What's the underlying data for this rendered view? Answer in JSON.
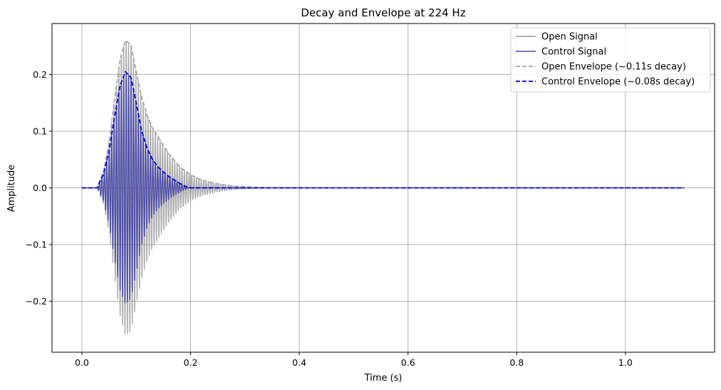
{
  "chart_data": {
    "type": "line",
    "title": "Decay and Envelope at 224 Hz",
    "xlabel": "Time (s)",
    "ylabel": "Amplitude",
    "xlim": [
      -0.055,
      1.164
    ],
    "ylim": [
      -0.29,
      0.29
    ],
    "x_ticks": [
      0.0,
      0.2,
      0.4,
      0.6,
      0.8,
      1.0
    ],
    "x_tick_labels": [
      "0.0",
      "0.2",
      "0.4",
      "0.6",
      "0.8",
      "1.0"
    ],
    "y_ticks": [
      -0.2,
      -0.1,
      0.0,
      0.1,
      0.2
    ],
    "y_tick_labels": [
      "−0.2",
      "−0.1",
      "0.0",
      "0.1",
      "0.2"
    ],
    "grid": true,
    "legend_position": "top-right",
    "x_end": 1.108,
    "series": [
      {
        "name": "Open Signal",
        "kind": "oscillation",
        "frequency_hz": 224,
        "color": "#999999",
        "style": "solid",
        "envelope_points": [
          [
            0.0,
            0.0
          ],
          [
            0.028,
            0.0
          ],
          [
            0.04,
            0.03
          ],
          [
            0.05,
            0.08
          ],
          [
            0.06,
            0.155
          ],
          [
            0.07,
            0.225
          ],
          [
            0.08,
            0.26
          ],
          [
            0.09,
            0.253
          ],
          [
            0.1,
            0.205
          ],
          [
            0.11,
            0.16
          ],
          [
            0.12,
            0.128
          ],
          [
            0.13,
            0.105
          ],
          [
            0.14,
            0.09
          ],
          [
            0.15,
            0.075
          ],
          [
            0.16,
            0.06
          ],
          [
            0.18,
            0.037
          ],
          [
            0.2,
            0.023
          ],
          [
            0.22,
            0.014
          ],
          [
            0.25,
            0.007
          ],
          [
            0.28,
            0.003
          ],
          [
            0.32,
            0.001
          ],
          [
            0.36,
            0.0
          ],
          [
            1.108,
            0.0
          ]
        ]
      },
      {
        "name": "Control Signal",
        "kind": "oscillation",
        "frequency_hz": 224,
        "color": "#4a4aa5",
        "style": "solid",
        "envelope_points": [
          [
            0.0,
            0.0
          ],
          [
            0.028,
            0.0
          ],
          [
            0.04,
            0.025
          ],
          [
            0.05,
            0.065
          ],
          [
            0.06,
            0.125
          ],
          [
            0.07,
            0.18
          ],
          [
            0.08,
            0.205
          ],
          [
            0.09,
            0.195
          ],
          [
            0.1,
            0.15
          ],
          [
            0.11,
            0.1
          ],
          [
            0.12,
            0.07
          ],
          [
            0.13,
            0.05
          ],
          [
            0.14,
            0.037
          ],
          [
            0.15,
            0.028
          ],
          [
            0.16,
            0.02
          ],
          [
            0.18,
            0.008
          ],
          [
            0.19,
            0.003
          ],
          [
            0.2,
            0.0
          ],
          [
            1.108,
            0.0
          ]
        ]
      },
      {
        "name": "Open Envelope (~0.11s decay)",
        "kind": "envelope",
        "color": "#a8a8a8",
        "style": "dashed",
        "points": [
          [
            0.0,
            0.0
          ],
          [
            0.028,
            0.0
          ],
          [
            0.04,
            0.03
          ],
          [
            0.05,
            0.08
          ],
          [
            0.06,
            0.155
          ],
          [
            0.07,
            0.225
          ],
          [
            0.08,
            0.26
          ],
          [
            0.09,
            0.253
          ],
          [
            0.1,
            0.205
          ],
          [
            0.11,
            0.16
          ],
          [
            0.12,
            0.128
          ],
          [
            0.13,
            0.105
          ],
          [
            0.14,
            0.09
          ],
          [
            0.15,
            0.075
          ],
          [
            0.16,
            0.06
          ],
          [
            0.18,
            0.037
          ],
          [
            0.2,
            0.023
          ],
          [
            0.22,
            0.014
          ],
          [
            0.25,
            0.007
          ],
          [
            0.28,
            0.003
          ],
          [
            0.32,
            0.001
          ],
          [
            0.36,
            0.0
          ],
          [
            1.108,
            0.0
          ]
        ]
      },
      {
        "name": "Control Envelope (~0.08s decay)",
        "kind": "envelope",
        "color": "#0000dd",
        "style": "dashed",
        "points": [
          [
            0.0,
            0.0
          ],
          [
            0.028,
            0.0
          ],
          [
            0.04,
            0.025
          ],
          [
            0.05,
            0.065
          ],
          [
            0.06,
            0.125
          ],
          [
            0.07,
            0.18
          ],
          [
            0.08,
            0.205
          ],
          [
            0.09,
            0.195
          ],
          [
            0.1,
            0.15
          ],
          [
            0.11,
            0.1
          ],
          [
            0.12,
            0.07
          ],
          [
            0.13,
            0.05
          ],
          [
            0.14,
            0.037
          ],
          [
            0.15,
            0.028
          ],
          [
            0.16,
            0.02
          ],
          [
            0.18,
            0.008
          ],
          [
            0.19,
            0.003
          ],
          [
            0.2,
            0.0
          ],
          [
            1.108,
            0.0
          ]
        ]
      }
    ]
  }
}
